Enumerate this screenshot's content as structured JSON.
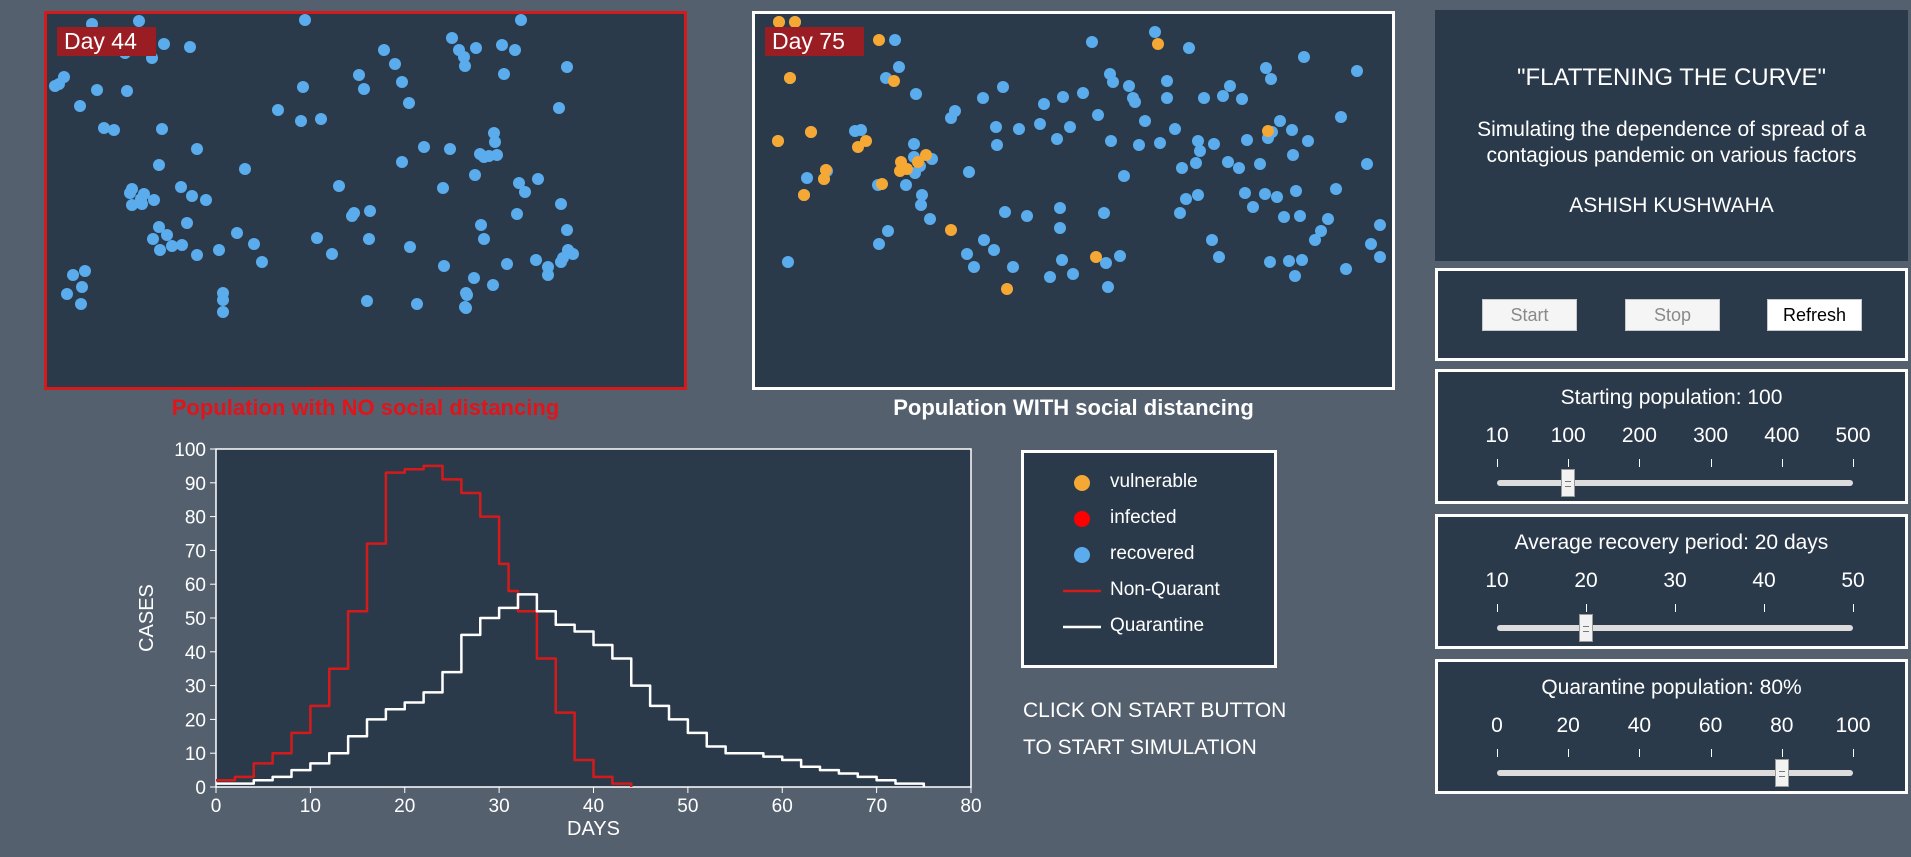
{
  "sim_no": {
    "day_label": "Day 44",
    "caption": "Population with NO social distancing"
  },
  "sim_with": {
    "day_label": "Day 75",
    "caption": "Population WITH social distancing"
  },
  "colors": {
    "vulnerable": "#f5a833",
    "infected": "#ff0000",
    "recovered": "#5aacec",
    "non_quarantine_line": "#d41a1a",
    "quarantine_line": "#ffffff",
    "panel_bg": "#2b3a4b",
    "page_bg": "#55606f",
    "badge_bg": "#9b1d24"
  },
  "legend": {
    "items": [
      {
        "label": "vulnerable",
        "kind": "dot",
        "color_key": "vulnerable"
      },
      {
        "label": "infected",
        "kind": "dot",
        "color_key": "infected"
      },
      {
        "label": "recovered",
        "kind": "dot",
        "color_key": "recovered"
      },
      {
        "label": "Non-Quarant",
        "kind": "line",
        "color_key": "non_quarantine_line"
      },
      {
        "label": "Quarantine",
        "kind": "line",
        "color_key": "quarantine_line"
      }
    ]
  },
  "instructions": {
    "line1": "CLICK ON START BUTTON",
    "line2": "TO START SIMULATION"
  },
  "info": {
    "title": "\"FLATTENING THE CURVE\"",
    "description": "Simulating the dependence of spread of a contagious pandemic on various factors",
    "author": "ASHISH KUSHWAHA"
  },
  "controls": {
    "start_label": "Start",
    "stop_label": "Stop",
    "refresh_label": "Refresh"
  },
  "sliders": {
    "population": {
      "title": "Starting population: 100",
      "ticks": [
        "10",
        "100",
        "200",
        "300",
        "400",
        "500"
      ],
      "min": 0,
      "max": 500,
      "value": 100
    },
    "recovery": {
      "title": "Average recovery period: 20 days",
      "ticks": [
        "10",
        "20",
        "30",
        "40",
        "50"
      ],
      "min": 10,
      "max": 50,
      "value": 20
    },
    "quarantine": {
      "title": "Quarantine population: 80%",
      "ticks": [
        "0",
        "20",
        "40",
        "60",
        "80",
        "100"
      ],
      "min": 0,
      "max": 100,
      "value": 80
    }
  },
  "chart_data": {
    "type": "line",
    "xlabel": "DAYS",
    "ylabel": "CASES",
    "xlim": [
      0,
      80
    ],
    "ylim": [
      0,
      100
    ],
    "xticks": [
      0,
      10,
      20,
      30,
      40,
      50,
      60,
      70,
      80
    ],
    "yticks": [
      0,
      10,
      20,
      30,
      40,
      50,
      60,
      70,
      80,
      90,
      100
    ],
    "grid": false,
    "series": [
      {
        "name": "Non-Quarant",
        "color_key": "non_quarantine_line",
        "x": [
          0,
          2,
          4,
          6,
          8,
          10,
          12,
          14,
          16,
          18,
          20,
          22,
          24,
          26,
          28,
          30,
          31,
          32,
          34,
          36,
          38,
          40,
          42,
          44
        ],
        "y": [
          2,
          3,
          7,
          10,
          16,
          24,
          35,
          52,
          72,
          93,
          94,
          95,
          91,
          87,
          80,
          66,
          58,
          52,
          38,
          22,
          8,
          3,
          1,
          0
        ]
      },
      {
        "name": "Quarantine",
        "color_key": "quarantine_line",
        "x": [
          0,
          2,
          4,
          6,
          8,
          10,
          12,
          14,
          16,
          18,
          20,
          22,
          24,
          26,
          28,
          30,
          32,
          34,
          36,
          38,
          40,
          42,
          44,
          46,
          48,
          50,
          52,
          54,
          56,
          58,
          60,
          62,
          64,
          66,
          68,
          70,
          72,
          75
        ],
        "y": [
          1,
          1,
          2,
          3,
          5,
          7,
          10,
          15,
          20,
          23,
          25,
          28,
          34,
          45,
          50,
          53,
          57,
          52,
          48,
          46,
          42,
          38,
          30,
          24,
          20,
          16,
          12,
          10,
          10,
          9,
          8,
          6,
          5,
          4,
          3,
          2,
          1,
          0
        ]
      }
    ]
  }
}
